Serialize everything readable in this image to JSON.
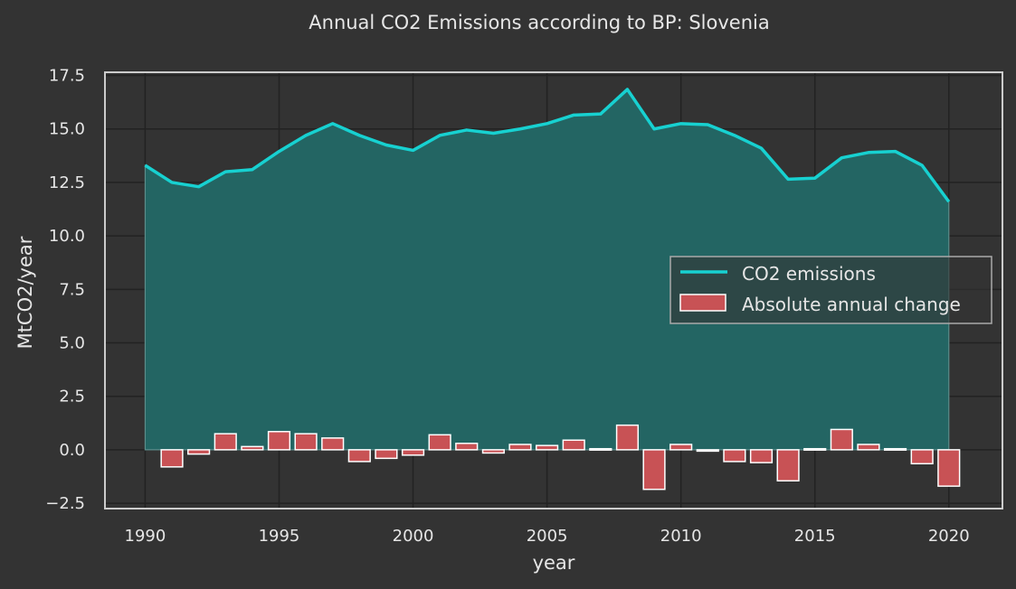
{
  "chart_data": {
    "type": "line",
    "title": "Annual CO2 Emissions according to BP: Slovenia",
    "xlabel": "year",
    "ylabel": "MtCO2/year",
    "xlim": [
      1988.5,
      2022
    ],
    "ylim": [
      -2.75,
      17.65
    ],
    "x_ticks": [
      1990,
      1995,
      2000,
      2005,
      2010,
      2015,
      2020
    ],
    "y_ticks": [
      -2.5,
      0.0,
      2.5,
      5.0,
      7.5,
      10.0,
      12.5,
      15.0,
      17.5
    ],
    "y_tick_labels": [
      "−2.5",
      "0.0",
      "2.5",
      "5.0",
      "7.5",
      "10.0",
      "12.5",
      "15.0",
      "17.5"
    ],
    "grid": true,
    "legend_position": "center-right",
    "colors": {
      "background": "#333333",
      "plot_background": "#333333",
      "grid": "#222222",
      "frame": "#cccccc",
      "line": "#17d1d1",
      "area_fill": "#236563",
      "bar_fill": "#c85255",
      "bar_edge": "#ffffff"
    },
    "series": [
      {
        "name": "CO2 emissions",
        "type": "line",
        "x": [
          1990,
          1991,
          1992,
          1993,
          1994,
          1995,
          1996,
          1997,
          1998,
          1999,
          2000,
          2001,
          2002,
          2003,
          2004,
          2005,
          2006,
          2007,
          2008,
          2009,
          2010,
          2011,
          2012,
          2013,
          2014,
          2015,
          2016,
          2017,
          2018,
          2019,
          2020
        ],
        "values": [
          13.3,
          12.5,
          12.3,
          13.0,
          13.1,
          13.95,
          14.7,
          15.25,
          14.7,
          14.25,
          14.0,
          14.7,
          14.95,
          14.8,
          15.0,
          15.25,
          15.65,
          15.7,
          16.85,
          15.0,
          15.25,
          15.2,
          14.7,
          14.1,
          12.65,
          12.7,
          13.65,
          13.9,
          13.95,
          13.3,
          11.6
        ]
      },
      {
        "name": "Absolute annual change",
        "type": "bar",
        "x": [
          1991,
          1992,
          1993,
          1994,
          1995,
          1996,
          1997,
          1998,
          1999,
          2000,
          2001,
          2002,
          2003,
          2004,
          2005,
          2006,
          2007,
          2008,
          2009,
          2010,
          2011,
          2012,
          2013,
          2014,
          2015,
          2016,
          2017,
          2018,
          2019,
          2020
        ],
        "values": [
          -0.8,
          -0.2,
          0.75,
          0.15,
          0.85,
          0.75,
          0.55,
          -0.55,
          -0.4,
          -0.25,
          0.7,
          0.3,
          -0.15,
          0.25,
          0.2,
          0.45,
          0.05,
          1.15,
          -1.85,
          0.25,
          -0.05,
          -0.55,
          -0.6,
          -1.45,
          0.05,
          0.95,
          0.25,
          0.05,
          -0.65,
          -1.7
        ]
      }
    ]
  }
}
